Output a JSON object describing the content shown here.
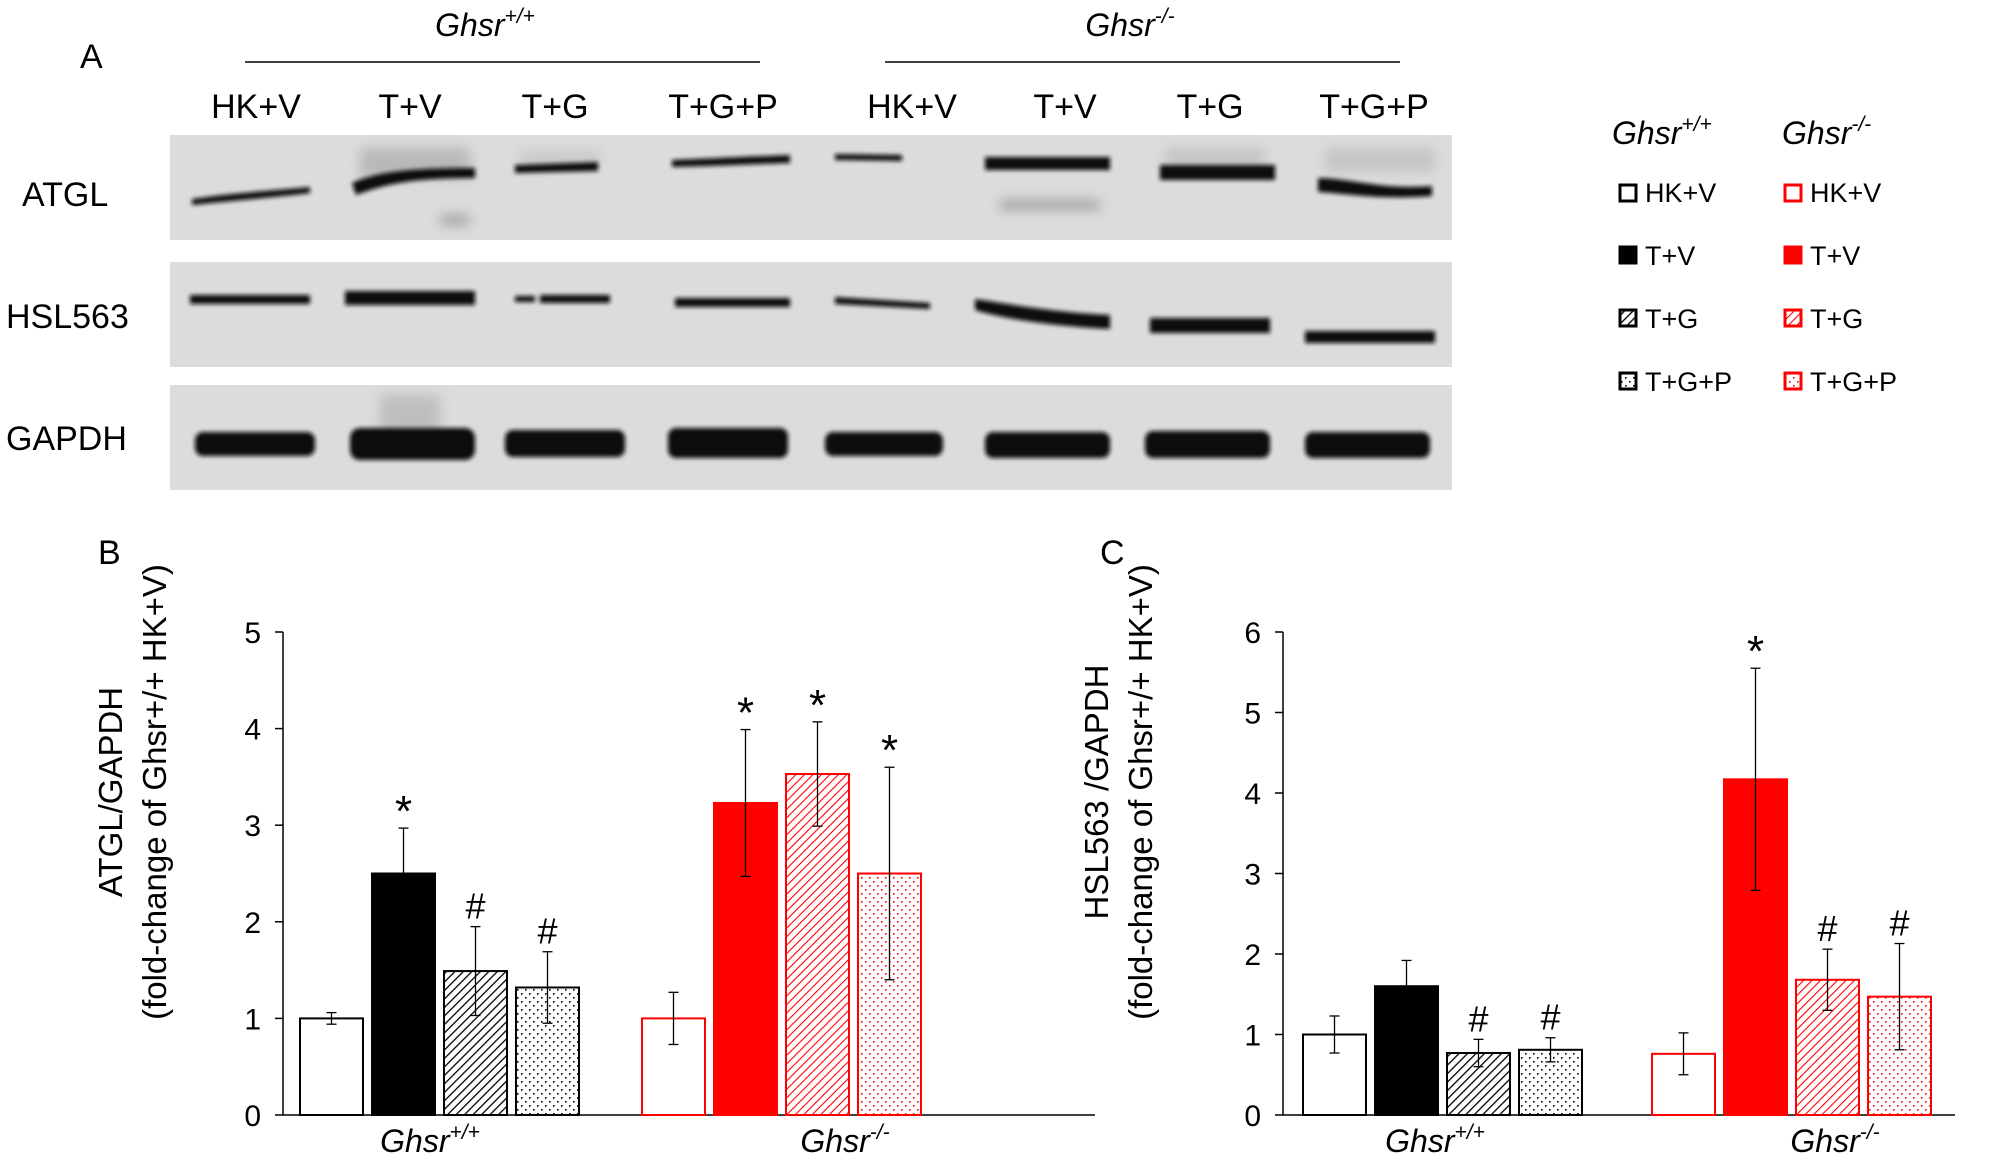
{
  "panel_labels": {
    "a": "A",
    "b": "B",
    "c": "C"
  },
  "western_blot": {
    "group_headers": [
      {
        "base": "Ghsr",
        "sup": "+/+"
      },
      {
        "base": "Ghsr",
        "sup": "-/-"
      }
    ],
    "lanes": [
      "HK+V",
      "T+V",
      "T+G",
      "T+G+P",
      "HK+V",
      "T+V",
      "T+G",
      "T+G+P"
    ],
    "rows": [
      "ATGL",
      "HSL563",
      "GAPDH"
    ]
  },
  "legend": {
    "columns": [
      {
        "base": "Ghsr",
        "sup": "+/+",
        "color": "#000000"
      },
      {
        "base": "Ghsr",
        "sup": "-/-",
        "color": "#ff0000"
      }
    ],
    "items": [
      {
        "label": "HK+V",
        "pattern": "open"
      },
      {
        "label": "T+V",
        "pattern": "solid"
      },
      {
        "label": "T+G",
        "pattern": "hatch"
      },
      {
        "label": "T+G+P",
        "pattern": "dots"
      }
    ]
  },
  "chart_data": [
    {
      "type": "bar",
      "panel": "B",
      "ylabel_line1": "ATGL/GAPDH",
      "ylabel_line2": "(fold-change of Ghsr+/+ HK+V)",
      "ylim": [
        0,
        5
      ],
      "yticks": [
        0,
        1,
        2,
        3,
        4,
        5
      ],
      "groups": [
        {
          "base": "Ghsr",
          "sup": "+/+",
          "color": "#000000"
        },
        {
          "base": "Ghsr",
          "sup": "-/-",
          "color": "#ff0000"
        }
      ],
      "series": [
        {
          "name": "HK+V",
          "pattern": "open",
          "values": [
            1.0,
            1.0
          ],
          "errors": [
            0.06,
            0.27
          ],
          "annotations": [
            "",
            ""
          ]
        },
        {
          "name": "T+V",
          "pattern": "solid",
          "values": [
            2.5,
            3.23
          ],
          "errors": [
            0.47,
            0.76
          ],
          "annotations": [
            "*",
            "*"
          ]
        },
        {
          "name": "T+G",
          "pattern": "hatch",
          "values": [
            1.49,
            3.53
          ],
          "errors": [
            0.46,
            0.54
          ],
          "annotations": [
            "#",
            "*"
          ]
        },
        {
          "name": "T+G+P",
          "pattern": "dots",
          "values": [
            1.32,
            2.5
          ],
          "errors": [
            0.37,
            1.1
          ],
          "annotations": [
            "#",
            "*"
          ]
        }
      ]
    },
    {
      "type": "bar",
      "panel": "C",
      "ylabel_line1": "HSL563 /GAPDH",
      "ylabel_line2": "(fold-change of Ghsr+/+ HK+V)",
      "ylim": [
        0,
        6
      ],
      "yticks": [
        0,
        1,
        2,
        3,
        4,
        5,
        6
      ],
      "groups": [
        {
          "base": "Ghsr",
          "sup": "+/+",
          "color": "#000000"
        },
        {
          "base": "Ghsr",
          "sup": "-/-",
          "color": "#ff0000"
        }
      ],
      "series": [
        {
          "name": "HK+V",
          "pattern": "open",
          "values": [
            1.0,
            0.76
          ],
          "errors": [
            0.23,
            0.26
          ],
          "annotations": [
            "",
            ""
          ]
        },
        {
          "name": "T+V",
          "pattern": "solid",
          "values": [
            1.6,
            4.17
          ],
          "errors": [
            0.32,
            1.38
          ],
          "annotations": [
            "",
            "*"
          ]
        },
        {
          "name": "T+G",
          "pattern": "hatch",
          "values": [
            0.77,
            1.68
          ],
          "errors": [
            0.17,
            0.38
          ],
          "annotations": [
            "#",
            "#"
          ]
        },
        {
          "name": "T+G+P",
          "pattern": "dots",
          "values": [
            0.81,
            1.47
          ],
          "errors": [
            0.15,
            0.66
          ],
          "annotations": [
            "#",
            "#"
          ]
        }
      ]
    }
  ]
}
